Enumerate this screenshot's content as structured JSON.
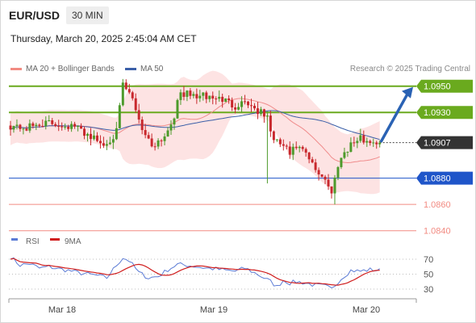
{
  "header": {
    "pair": "EUR/USD",
    "timeframe": "30 MIN",
    "datetime": "Thursday, March 20, 2025 2:45:04 AM CET"
  },
  "legend": {
    "items": [
      {
        "label": "MA 20 + Bollinger Bands",
        "color": "#f28b82"
      },
      {
        "label": "MA 50",
        "color": "#3b5fa8"
      }
    ],
    "credit": "Research © 2025 Trading Central"
  },
  "colors": {
    "resistance": "#6aaa1e",
    "support": "#1f55c9",
    "weak_support": "#f28b82",
    "arrow": "#2a62b4",
    "bollinger_fill": "#fde3e3",
    "ma20": "#f08c8c",
    "ma50": "#3b5fa8",
    "candle_up": "#4d9a2b",
    "candle_down": "#c8282d",
    "rsi": "#5b7bd5",
    "rsi_ma": "#d01e1e"
  },
  "chart_data": [
    {
      "type": "candlestick",
      "title": "",
      "x_ticks": [
        "Mar 18",
        "Mar 19",
        "Mar 20"
      ],
      "ylim": [
        1.083,
        1.0975
      ],
      "current_price": 1.0907,
      "levels": [
        {
          "value": 1.095,
          "label": "1.0950",
          "kind": "resistance"
        },
        {
          "value": 1.093,
          "label": "1.0930",
          "kind": "resistance"
        },
        {
          "value": 1.088,
          "label": "1.0880",
          "kind": "support"
        },
        {
          "value": 1.086,
          "label": "1.0860",
          "kind": "weak_support"
        },
        {
          "value": 1.084,
          "label": "1.0840",
          "kind": "weak_support"
        }
      ],
      "forecast": {
        "direction": "up",
        "from": 1.0907,
        "to": 1.095
      },
      "price_anchors": [
        [
          0,
          1.092
        ],
        [
          5,
          1.0918
        ],
        [
          10,
          1.0922
        ],
        [
          15,
          1.0921
        ],
        [
          20,
          1.0919
        ],
        [
          25,
          1.0912
        ],
        [
          29,
          1.0905
        ],
        [
          33,
          1.0915
        ],
        [
          35,
          1.0951
        ],
        [
          38,
          1.094
        ],
        [
          41,
          1.0918
        ],
        [
          44,
          1.0905
        ],
        [
          48,
          1.0912
        ],
        [
          51,
          1.0928
        ],
        [
          53,
          1.0945
        ],
        [
          56,
          1.0943
        ],
        [
          61,
          1.0942
        ],
        [
          66,
          1.094
        ],
        [
          70,
          1.0935
        ],
        [
          73,
          1.0939
        ],
        [
          76,
          1.0933
        ],
        [
          80,
          1.0926
        ],
        [
          82,
          1.0908
        ],
        [
          85,
          1.0905
        ],
        [
          87,
          1.0898
        ],
        [
          89,
          1.0904
        ],
        [
          92,
          1.0898
        ],
        [
          95,
          1.0886
        ],
        [
          98,
          1.088
        ],
        [
          100,
          1.0868
        ],
        [
          102,
          1.0891
        ],
        [
          104,
          1.09
        ],
        [
          106,
          1.0906
        ],
        [
          109,
          1.091
        ],
        [
          112,
          1.0908
        ],
        [
          115,
          1.0907
        ]
      ]
    },
    {
      "type": "line",
      "title": "RSI",
      "series": [
        {
          "name": "RSI"
        },
        {
          "name": "9MA"
        }
      ],
      "y_ticks": [
        70,
        50,
        30
      ],
      "ylim": [
        20,
        80
      ],
      "rsi_anchors": [
        [
          0,
          73
        ],
        [
          3,
          62
        ],
        [
          6,
          64
        ],
        [
          9,
          58
        ],
        [
          12,
          60
        ],
        [
          15,
          57
        ],
        [
          18,
          55
        ],
        [
          21,
          52
        ],
        [
          24,
          50
        ],
        [
          27,
          48
        ],
        [
          30,
          45
        ],
        [
          33,
          62
        ],
        [
          35,
          72
        ],
        [
          37,
          68
        ],
        [
          40,
          52
        ],
        [
          43,
          45
        ],
        [
          46,
          47
        ],
        [
          49,
          56
        ],
        [
          52,
          63
        ],
        [
          55,
          62
        ],
        [
          58,
          60
        ],
        [
          61,
          58
        ],
        [
          64,
          57
        ],
        [
          67,
          55
        ],
        [
          70,
          54
        ],
        [
          73,
          58
        ],
        [
          76,
          52
        ],
        [
          79,
          45
        ],
        [
          81,
          40
        ],
        [
          83,
          33
        ],
        [
          85,
          42
        ],
        [
          87,
          38
        ],
        [
          89,
          40
        ],
        [
          92,
          38
        ],
        [
          95,
          35
        ],
        [
          98,
          34
        ],
        [
          100,
          30
        ],
        [
          102,
          40
        ],
        [
          104,
          48
        ],
        [
          106,
          55
        ],
        [
          109,
          54
        ],
        [
          112,
          56
        ],
        [
          115,
          55
        ]
      ]
    }
  ]
}
